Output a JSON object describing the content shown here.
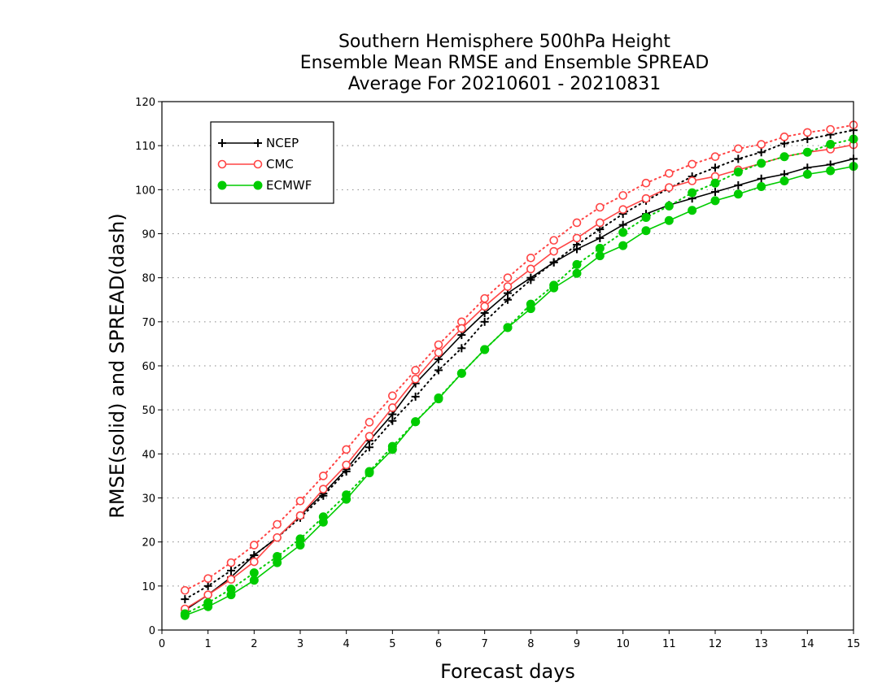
{
  "chart_data": {
    "type": "line",
    "title": [
      "Southern Hemisphere 500hPa Height",
      "Ensemble Mean RMSE and Ensemble SPREAD",
      "Average For 20210601 - 20210831"
    ],
    "xlabel": "Forecast days",
    "ylabel": "RMSE(solid) and SPREAD(dash)",
    "xlim": [
      0,
      15
    ],
    "ylim": [
      0,
      120
    ],
    "x_ticks": [
      0,
      1,
      2,
      3,
      4,
      5,
      6,
      7,
      8,
      9,
      10,
      11,
      12,
      13,
      14,
      15
    ],
    "y_ticks": [
      0,
      10,
      20,
      30,
      40,
      50,
      60,
      70,
      80,
      90,
      100,
      110,
      120
    ],
    "grid": "horizontal dotted",
    "legend_position": "top-left",
    "x": [
      0.5,
      1,
      1.5,
      2,
      2.5,
      3,
      3.5,
      4,
      4.5,
      5,
      5.5,
      6,
      6.5,
      7,
      7.5,
      8,
      8.5,
      9,
      9.5,
      10,
      10.5,
      11,
      11.5,
      12,
      12.5,
      13,
      13.5,
      14,
      14.5,
      15
    ],
    "series": [
      {
        "name": "NCEP",
        "color": "#000000",
        "marker": "plus",
        "rmse": [
          4.5,
          8,
          12,
          17,
          21,
          26,
          31,
          36.5,
          43,
          49,
          56,
          61.5,
          67,
          72,
          76.5,
          80,
          83.5,
          86.5,
          89,
          92,
          94.5,
          96.5,
          98,
          99.5,
          101,
          102.5,
          103.5,
          105,
          105.7,
          107
        ],
        "spread": [
          7,
          10,
          13.5,
          17,
          21,
          25.5,
          30.5,
          36,
          41.5,
          47.5,
          53,
          59,
          64,
          70,
          75,
          79.5,
          83.5,
          87.5,
          91,
          94.5,
          97.5,
          100.3,
          103,
          105,
          107,
          108.5,
          110.5,
          111.5,
          112.5,
          113.5
        ]
      },
      {
        "name": "CMC",
        "color": "#ff4444",
        "marker": "open-circle",
        "rmse": [
          4.8,
          8,
          11.5,
          15.5,
          21,
          26,
          32,
          37.5,
          44,
          50.5,
          57,
          63,
          68.5,
          73.5,
          78,
          82,
          86,
          89,
          92.5,
          95.5,
          98,
          100.5,
          102,
          103,
          104.5,
          106,
          107.5,
          108.5,
          109.2,
          110.2
        ],
        "spread": [
          9,
          11.7,
          15.3,
          19.3,
          24,
          29.3,
          35,
          41,
          47.2,
          53.2,
          59,
          64.8,
          70,
          75.3,
          80,
          84.5,
          88.5,
          92.5,
          96,
          98.7,
          101.5,
          103.7,
          105.8,
          107.5,
          109.3,
          110.3,
          112,
          113,
          113.7,
          114.7
        ]
      },
      {
        "name": "ECMWF",
        "color": "#00cc00",
        "marker": "filled-circle",
        "rmse": [
          3.3,
          5.3,
          8,
          11.3,
          15.3,
          19.3,
          24.5,
          29.7,
          35.7,
          41,
          47.3,
          52.5,
          58.3,
          63.7,
          68.7,
          73,
          77.7,
          81,
          85,
          87.3,
          90.7,
          93,
          95.3,
          97.5,
          99,
          100.7,
          102,
          103.5,
          104.3,
          105.3
        ],
        "spread": [
          3.7,
          6.2,
          9.3,
          13,
          16.7,
          20.7,
          25.7,
          30.7,
          36,
          41.7,
          47.3,
          52.7,
          58.3,
          63.7,
          68.7,
          74,
          78.3,
          83,
          86.7,
          90.3,
          93.7,
          96.3,
          99.3,
          101.5,
          104,
          106,
          107.5,
          108.5,
          110.3,
          111.5
        ]
      }
    ]
  }
}
